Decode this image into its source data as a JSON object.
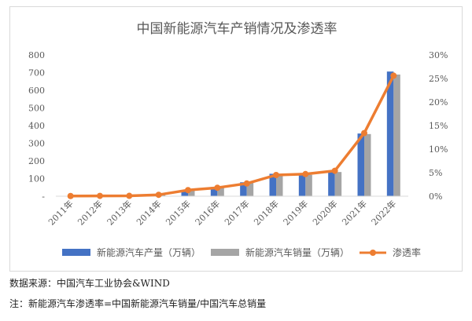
{
  "chart_data": {
    "type": "bar",
    "title": "中国新能源汽车产销情况及渗透率",
    "categories": [
      "2011年",
      "2012年",
      "2013年",
      "2014年",
      "2015年",
      "2016年",
      "2017年",
      "2018年",
      "2019年",
      "2020年",
      "2021年",
      "2022年"
    ],
    "series": [
      {
        "name": "新能源汽车产量（万辆）",
        "type": "bar",
        "axis": "left",
        "color": "#4472c4",
        "values": [
          0.8,
          1.3,
          1.8,
          7.9,
          34,
          52,
          79,
          127,
          124,
          137,
          355,
          706
        ]
      },
      {
        "name": "新能源汽车销量（万辆）",
        "type": "bar",
        "axis": "left",
        "color": "#a5a5a5",
        "values": [
          0.8,
          1.3,
          1.8,
          7.5,
          33,
          51,
          78,
          126,
          121,
          137,
          352,
          689
        ]
      },
      {
        "name": "渗透率",
        "type": "line",
        "axis": "right",
        "color": "#ed7d31",
        "values": [
          0.04,
          0.07,
          0.08,
          0.3,
          1.3,
          1.8,
          2.7,
          4.5,
          4.7,
          5.4,
          13.4,
          25.6
        ]
      }
    ],
    "y_left": {
      "ylim": [
        0,
        800
      ],
      "ticks": [
        "-",
        "100",
        "200",
        "300",
        "400",
        "500",
        "600",
        "700",
        "800"
      ]
    },
    "y_right": {
      "ylim": [
        0,
        30
      ],
      "ticks": [
        "0%",
        "5%",
        "10%",
        "15%",
        "20%",
        "25%",
        "30%"
      ]
    },
    "grid": false,
    "legend_position": "bottom"
  },
  "notes": {
    "source": "数据来源：中国汽车工业协会&WIND",
    "penetration": "注：新能源汽车渗透率=中国新能源汽车销量/中国汽车总销量"
  }
}
